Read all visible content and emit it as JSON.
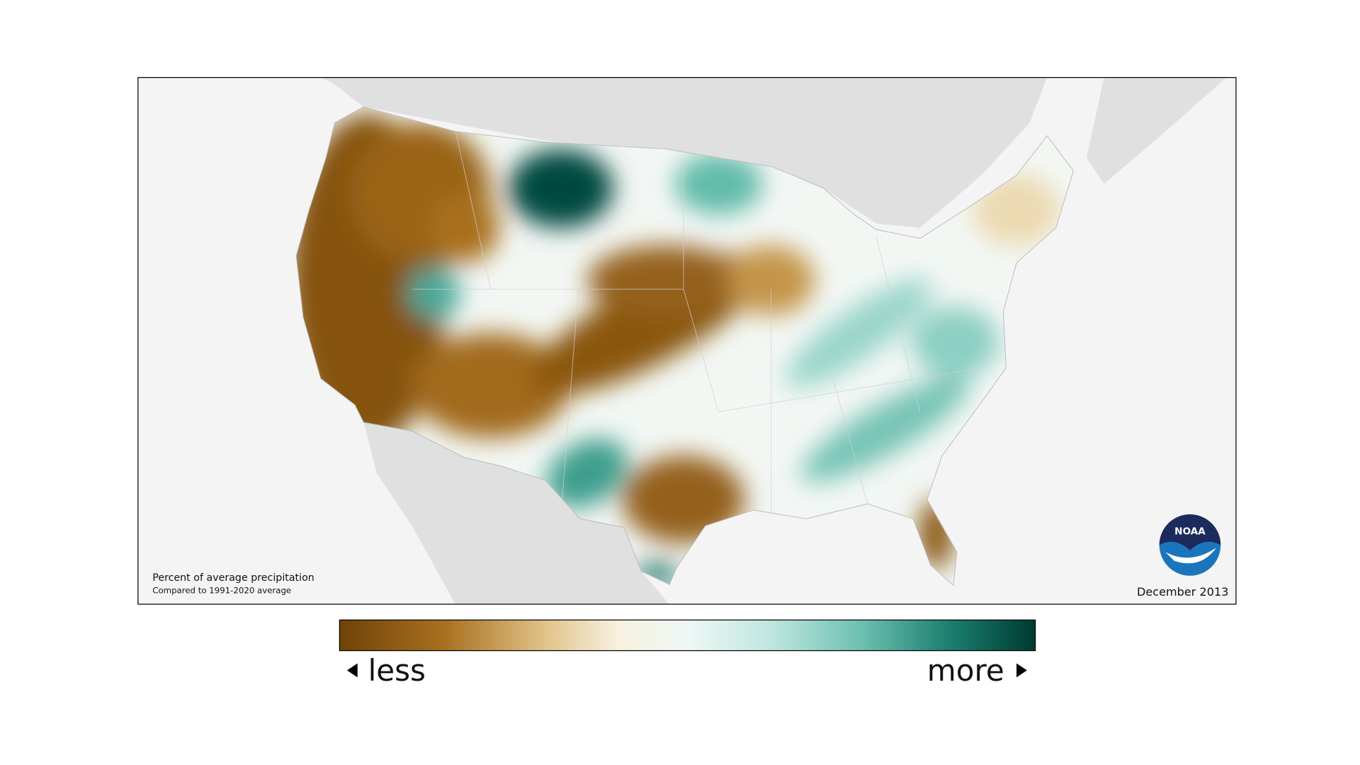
{
  "map": {
    "caption": {
      "title": "Percent of average precipitation",
      "subtitle": "Compared to 1991-2020 average"
    },
    "date": "December 2013",
    "logo": "NOAA"
  },
  "legend": {
    "low": "less",
    "high": "more"
  }
}
